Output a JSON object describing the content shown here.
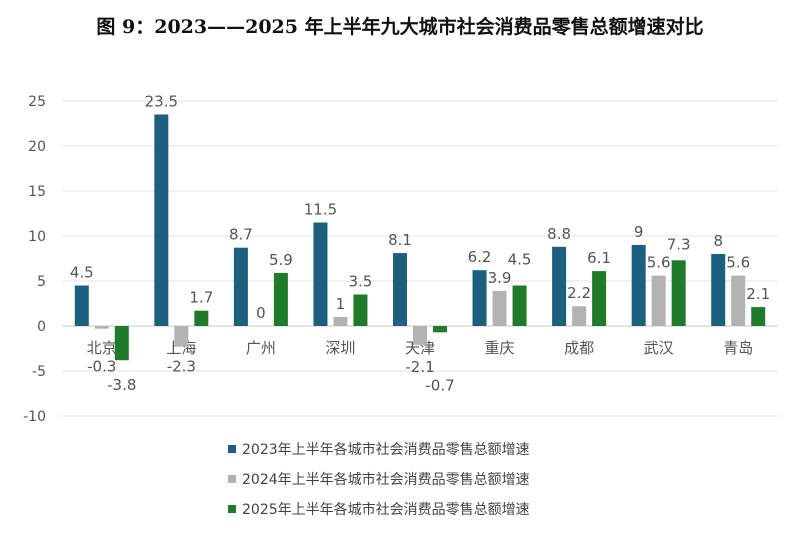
{
  "title": "图 9：2023——2025 年上半年九大城市社会消费品零售总额增速对比",
  "chart_data": {
    "type": "bar",
    "title": "图 9：2023——2025 年上半年九大城市社会消费品零售总额增速对比",
    "categories": [
      "北京",
      "上海",
      "广州",
      "深圳",
      "天津",
      "重庆",
      "成都",
      "武汉",
      "青岛"
    ],
    "series": [
      {
        "name": "2023年上半年各城市社会消费品零售总额增速",
        "color": "#1c5f7f",
        "values": [
          4.5,
          23.5,
          8.7,
          11.5,
          8.1,
          6.2,
          8.8,
          9,
          8
        ]
      },
      {
        "name": "2024年上半年各城市社会消费品零售总额增速",
        "color": "#b3b3b3",
        "values": [
          -0.3,
          -2.3,
          0,
          1,
          -2.1,
          3.9,
          2.2,
          5.6,
          5.6
        ]
      },
      {
        "name": "2025年上半年各城市社会消费品零售总额增速",
        "color": "#1f7a2a",
        "values": [
          -3.8,
          1.7,
          5.9,
          3.5,
          -0.7,
          4.5,
          6.1,
          7.3,
          2.1
        ]
      }
    ],
    "yticks": [
      25,
      20,
      15,
      10,
      5,
      0,
      -5,
      -10
    ],
    "ylim": [
      -10,
      25
    ],
    "grid": true,
    "legend": "bottom"
  }
}
